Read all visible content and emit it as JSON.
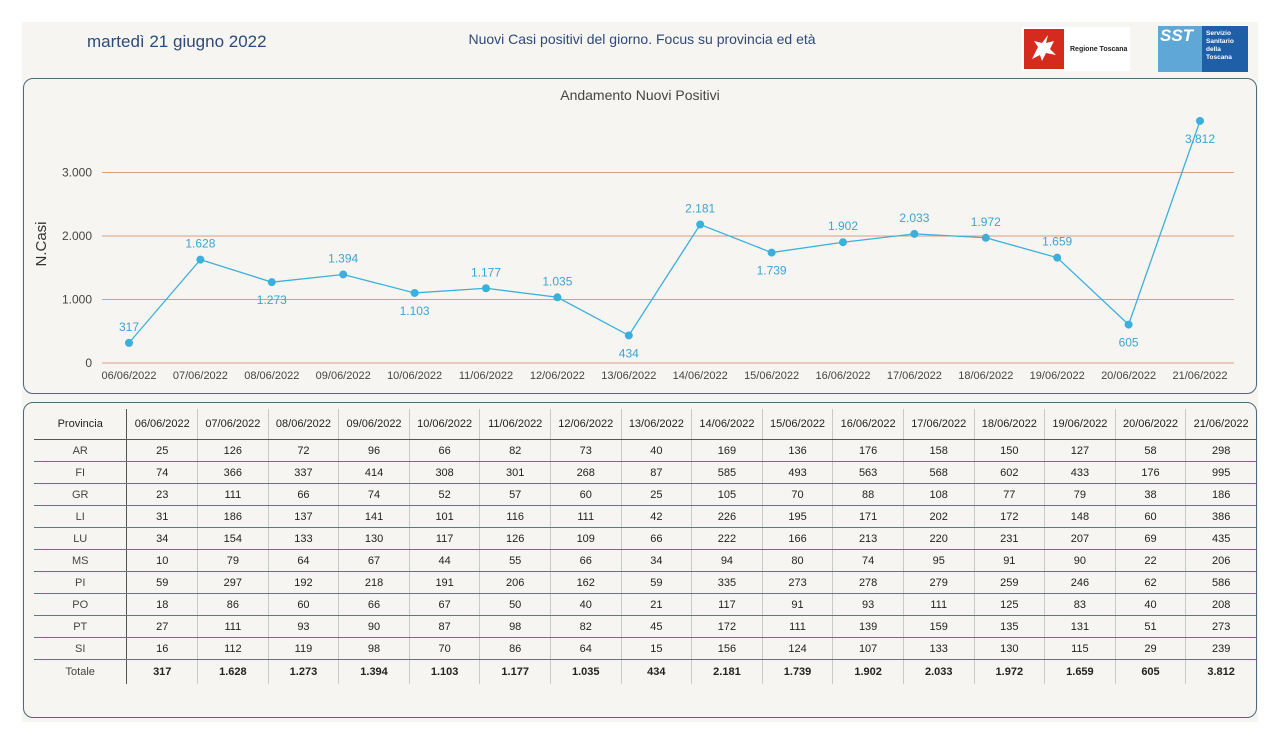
{
  "header": {
    "date": "martedì 21 giugno 2022",
    "subtitle": "Nuovi Casi positivi del giorno. Focus su provincia ed età",
    "logo_region": "Regione Toscana",
    "logo_sst_short": "SST",
    "logo_sst_text": "Servizio\nSanitario\ndella\nToscana"
  },
  "colors": {
    "line": "#3cb0dc",
    "grid": "#dc9a83",
    "label": "#3ca4d4"
  },
  "chart_data": {
    "type": "line",
    "title": "Andamento Nuovi Positivi",
    "ylabel": "N.Casi",
    "xlabel": "",
    "ylim": [
      0,
      3812
    ],
    "yticks": [
      0,
      1000,
      2000,
      3000
    ],
    "ytick_labels": [
      "0",
      "1.000",
      "2.000",
      "3.000"
    ],
    "categories": [
      "06/06/2022",
      "07/06/2022",
      "08/06/2022",
      "09/06/2022",
      "10/06/2022",
      "11/06/2022",
      "12/06/2022",
      "13/06/2022",
      "14/06/2022",
      "15/06/2022",
      "16/06/2022",
      "17/06/2022",
      "18/06/2022",
      "19/06/2022",
      "20/06/2022",
      "21/06/2022"
    ],
    "values": [
      317,
      1628,
      1273,
      1394,
      1103,
      1177,
      1035,
      434,
      2181,
      1739,
      1902,
      2033,
      1972,
      1659,
      605,
      3812
    ],
    "value_labels": [
      "317",
      "1.628",
      "1.273",
      "1.394",
      "1.103",
      "1.177",
      "1.035",
      "434",
      "2.181",
      "1.739",
      "1.902",
      "2.033",
      "1.972",
      "1.659",
      "605",
      "3.812"
    ],
    "label_positions": [
      "above",
      "above",
      "below",
      "above",
      "below",
      "above",
      "above",
      "below",
      "above",
      "below",
      "above",
      "above",
      "above",
      "above",
      "below",
      "below"
    ],
    "grid": true
  },
  "table": {
    "header_label": "Provincia",
    "columns": [
      "06/06/2022",
      "07/06/2022",
      "08/06/2022",
      "09/06/2022",
      "10/06/2022",
      "11/06/2022",
      "12/06/2022",
      "13/06/2022",
      "14/06/2022",
      "15/06/2022",
      "16/06/2022",
      "17/06/2022",
      "18/06/2022",
      "19/06/2022",
      "20/06/2022",
      "21/06/2022"
    ],
    "rows": [
      {
        "name": "AR",
        "values": [
          "25",
          "126",
          "72",
          "96",
          "66",
          "82",
          "73",
          "40",
          "169",
          "136",
          "176",
          "158",
          "150",
          "127",
          "58",
          "298"
        ]
      },
      {
        "name": "FI",
        "values": [
          "74",
          "366",
          "337",
          "414",
          "308",
          "301",
          "268",
          "87",
          "585",
          "493",
          "563",
          "568",
          "602",
          "433",
          "176",
          "995"
        ]
      },
      {
        "name": "GR",
        "values": [
          "23",
          "111",
          "66",
          "74",
          "52",
          "57",
          "60",
          "25",
          "105",
          "70",
          "88",
          "108",
          "77",
          "79",
          "38",
          "186"
        ]
      },
      {
        "name": "LI",
        "values": [
          "31",
          "186",
          "137",
          "141",
          "101",
          "116",
          "111",
          "42",
          "226",
          "195",
          "171",
          "202",
          "172",
          "148",
          "60",
          "386"
        ]
      },
      {
        "name": "LU",
        "values": [
          "34",
          "154",
          "133",
          "130",
          "117",
          "126",
          "109",
          "66",
          "222",
          "166",
          "213",
          "220",
          "231",
          "207",
          "69",
          "435"
        ]
      },
      {
        "name": "MS",
        "values": [
          "10",
          "79",
          "64",
          "67",
          "44",
          "55",
          "66",
          "34",
          "94",
          "80",
          "74",
          "95",
          "91",
          "90",
          "22",
          "206"
        ]
      },
      {
        "name": "PI",
        "values": [
          "59",
          "297",
          "192",
          "218",
          "191",
          "206",
          "162",
          "59",
          "335",
          "273",
          "278",
          "279",
          "259",
          "246",
          "62",
          "586"
        ]
      },
      {
        "name": "PO",
        "values": [
          "18",
          "86",
          "60",
          "66",
          "67",
          "50",
          "40",
          "21",
          "117",
          "91",
          "93",
          "111",
          "125",
          "83",
          "40",
          "208"
        ]
      },
      {
        "name": "PT",
        "values": [
          "27",
          "111",
          "93",
          "90",
          "87",
          "98",
          "82",
          "45",
          "172",
          "111",
          "139",
          "159",
          "135",
          "131",
          "51",
          "273"
        ]
      },
      {
        "name": "SI",
        "values": [
          "16",
          "112",
          "119",
          "98",
          "70",
          "86",
          "64",
          "15",
          "156",
          "124",
          "107",
          "133",
          "130",
          "115",
          "29",
          "239"
        ]
      }
    ],
    "total": {
      "name": "Totale",
      "values": [
        "317",
        "1.628",
        "1.273",
        "1.394",
        "1.103",
        "1.177",
        "1.035",
        "434",
        "2.181",
        "1.739",
        "1.902",
        "2.033",
        "1.972",
        "1.659",
        "605",
        "3.812"
      ]
    }
  }
}
